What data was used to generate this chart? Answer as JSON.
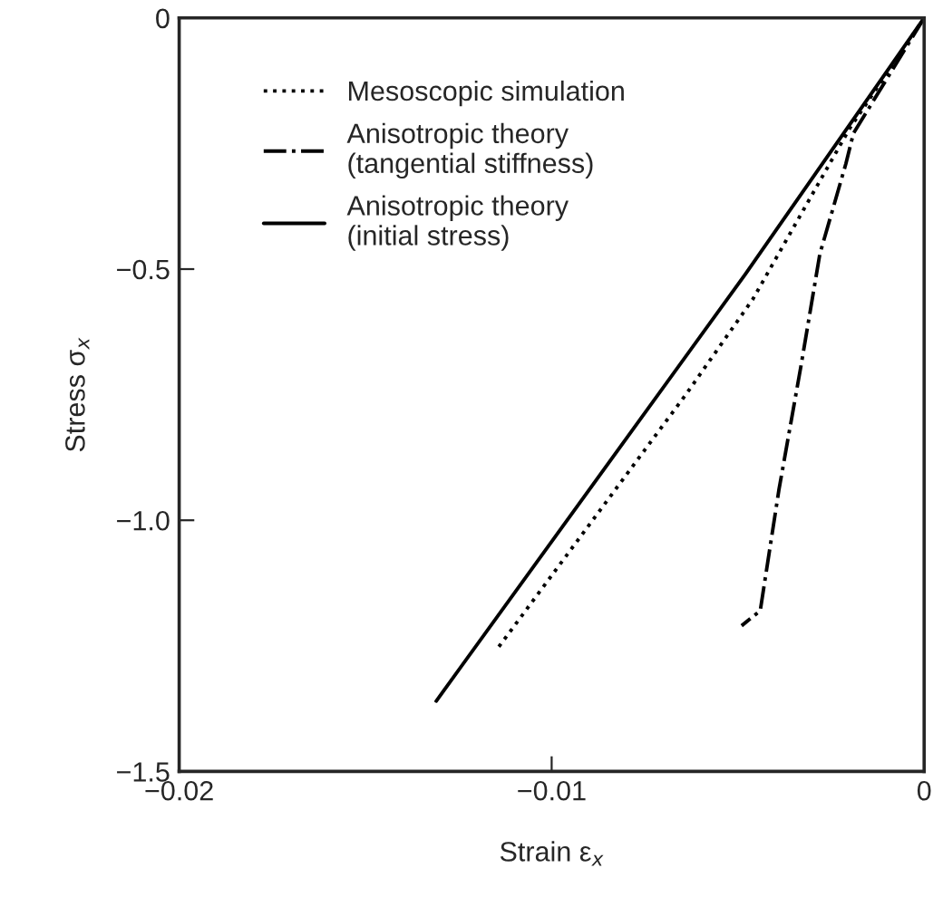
{
  "chart_data": {
    "type": "line",
    "xlabel": "Strain ε$_{x}$",
    "ylabel": "Stress σ$_{x}$",
    "xlim": [
      -0.02,
      0
    ],
    "ylim": [
      -1.5,
      0
    ],
    "xticks": [
      {
        "value": -0.02,
        "label": "−0.02"
      },
      {
        "value": -0.01,
        "label": "−0.01"
      },
      0
    ],
    "yticks": [
      {
        "value": -1.5,
        "label": "−1.5"
      },
      {
        "value": -1.0,
        "label": "−1.0"
      },
      {
        "value": -0.5,
        "label": "−0.5"
      },
      0
    ],
    "grid": false,
    "legend": "top left",
    "series": [
      {
        "name": "Mesoscopic simulation",
        "color": "#000000",
        "line_style": "dotted",
        "x": [
          0,
          -0.002,
          -0.0046,
          -0.0064,
          -0.0115
        ],
        "values": [
          0,
          -0.22,
          -0.56,
          -0.75,
          -1.26
        ]
      },
      {
        "name": "Anisotropic theory\n(tangential stiffness)",
        "color": "#000000",
        "line_style": "dashdot",
        "x": [
          0,
          -0.0019,
          -0.0021,
          -0.0028,
          -0.0033,
          -0.0039,
          -0.0044,
          -0.0049
        ],
        "values": [
          0,
          -0.23,
          -0.29,
          -0.47,
          -0.69,
          -0.94,
          -1.18,
          -1.21
        ]
      },
      {
        "name": "Anisotropic theory\n(initial stress)",
        "color": "#000000",
        "line_style": "solid",
        "x": [
          0,
          -0.0048,
          -0.0131
        ],
        "values": [
          0,
          -0.51,
          -1.36
        ]
      }
    ]
  }
}
